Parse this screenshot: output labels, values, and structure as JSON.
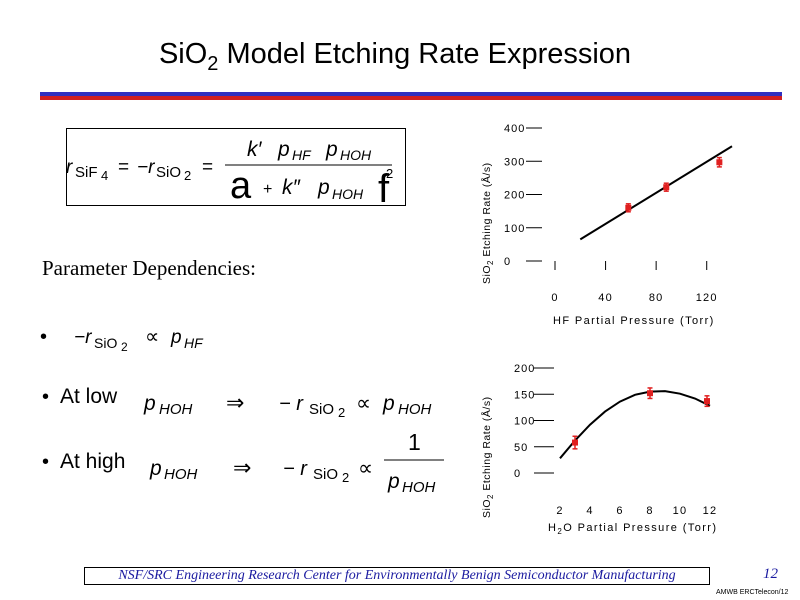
{
  "slide": {
    "title_main": "SiO",
    "title_sub": "2",
    "title_rest": " Model Etching Rate Expression",
    "page_number": "12",
    "footer": "NSF/SRC Engineering Research Center for Environmentally Benign Semiconductor Manufacturing",
    "code": "AMWB ERCTelecon/12",
    "colors": {
      "rule_top": "#3030c0",
      "rule_bottom": "#d02020",
      "footer_text": "#1a1aa0",
      "marker": "#e02020"
    }
  },
  "equation": {
    "lhs1_r": "r",
    "lhs1_sub_a": "SiF",
    "lhs1_sub_b": "4",
    "eq1": "=",
    "lhs2": "−r",
    "lhs2_sub_a": "SiO",
    "lhs2_sub_b": "2",
    "eq2": "=",
    "num_k": "k′",
    "num_p1": "p",
    "num_p1_sub": "HF",
    "num_p2": "p",
    "num_p2_sub": "HOH",
    "den_a": "a",
    "den_plus": "+",
    "den_k": "k″",
    "den_p": "p",
    "den_p_sub": "HOH",
    "den_f": "f",
    "den_exp": "2"
  },
  "params": {
    "heading": "Parameter Dependencies:",
    "bullet1": {
      "bullet": "•",
      "lhs": "−r",
      "lhs_sub_a": "SiO",
      "lhs_sub_b": "2",
      "prop": "∝",
      "rhs": "p",
      "rhs_sub": "HF"
    },
    "bullet2": {
      "bullet": "•",
      "lead": "At low",
      "p": "p",
      "p_sub": "HOH",
      "implies": "⇒",
      "lhs": "− r",
      "lhs_sub_a": "SiO",
      "lhs_sub_b": "2",
      "prop": "∝",
      "rhs": "p",
      "rhs_sub": "HOH"
    },
    "bullet3": {
      "bullet": "•",
      "lead": "At high",
      "p": "p",
      "p_sub": "HOH",
      "implies": "⇒",
      "lhs": "− r",
      "lhs_sub_a": "SiO",
      "lhs_sub_b": "2",
      "prop": "∝",
      "frac_num": "1",
      "den": "p",
      "den_sub": "HOH"
    }
  },
  "chart_data": [
    {
      "type": "scatter",
      "ylabel_pre": "SiO",
      "ylabel_sub": "2",
      "ylabel_post": " Etching Rate (Å/s)",
      "xlabel": "HF Partial Pressure (Torr)",
      "xlim": [
        0,
        140
      ],
      "ylim": [
        0,
        400
      ],
      "xticks": [
        0,
        40,
        80,
        120
      ],
      "yticks": [
        0,
        100,
        200,
        300,
        400
      ],
      "points": [
        {
          "x": 58,
          "y": 160,
          "err": 12
        },
        {
          "x": 88,
          "y": 222,
          "err": 12
        },
        {
          "x": 130,
          "y": 297,
          "err": 14
        }
      ],
      "fit_line": [
        [
          20,
          65
        ],
        [
          140,
          345
        ]
      ]
    },
    {
      "type": "scatter",
      "ylabel_pre": "SiO",
      "ylabel_sub": "2",
      "ylabel_post": " Etching Rate (Å/s)",
      "xlabel_pre": "H",
      "xlabel_sub": "2",
      "xlabel_post": "O Partial Pressure (Torr)",
      "xlim": [
        0,
        13
      ],
      "ylim": [
        0,
        200
      ],
      "xticks": [
        2,
        4,
        6,
        8,
        10,
        12
      ],
      "yticks": [
        0,
        50,
        100,
        150,
        200
      ],
      "points": [
        {
          "x": 3,
          "y": 58,
          "err": 12
        },
        {
          "x": 8,
          "y": 152,
          "err": 10
        },
        {
          "x": 11.8,
          "y": 137,
          "err": 10
        }
      ],
      "fit_curve": [
        [
          2,
          28
        ],
        [
          3,
          62
        ],
        [
          4,
          92
        ],
        [
          5,
          117
        ],
        [
          6,
          136
        ],
        [
          7,
          149
        ],
        [
          8,
          155
        ],
        [
          9,
          156
        ],
        [
          10,
          151
        ],
        [
          11,
          142
        ],
        [
          12,
          128
        ]
      ]
    }
  ]
}
